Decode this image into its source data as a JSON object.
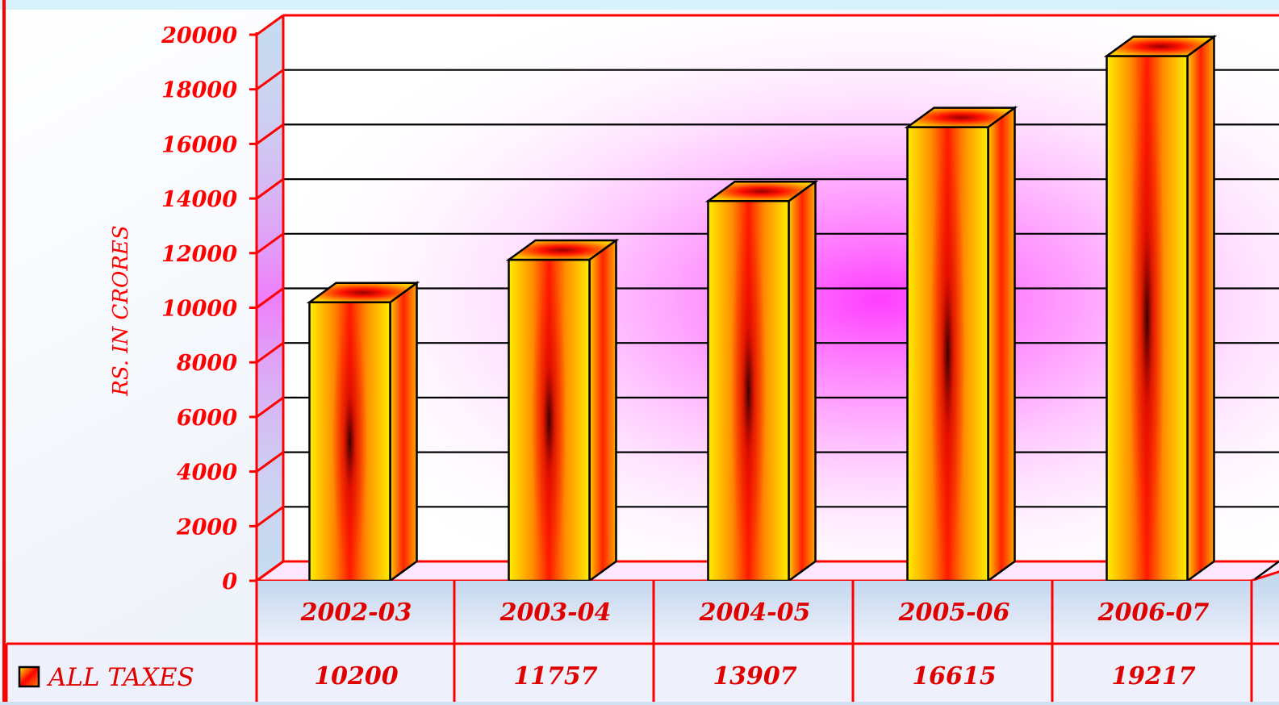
{
  "chart_data": {
    "type": "bar",
    "categories": [
      "2002-03",
      "2003-04",
      "2004-05",
      "2005-06",
      "2006-07"
    ],
    "series": [
      {
        "name": "ALL TAXES",
        "values": [
          10200,
          11757,
          13907,
          16615,
          19217
        ]
      }
    ],
    "ylabel": "RS. IN CRORES",
    "ylim": [
      0,
      20000
    ],
    "yticks": [
      0,
      2000,
      4000,
      6000,
      8000,
      10000,
      12000,
      14000,
      16000,
      18000,
      20000
    ],
    "grid": true,
    "legend": "data-table-left",
    "bar_style": "3d-column",
    "colors": {
      "frame": "#ff0000",
      "bar_light": "#ffee00",
      "bar_mid": "#ff8800",
      "bar_dark": "#ff0000",
      "bar_core": "#330000",
      "glow": "#ff33ff",
      "background": "#cfe0f2"
    }
  }
}
